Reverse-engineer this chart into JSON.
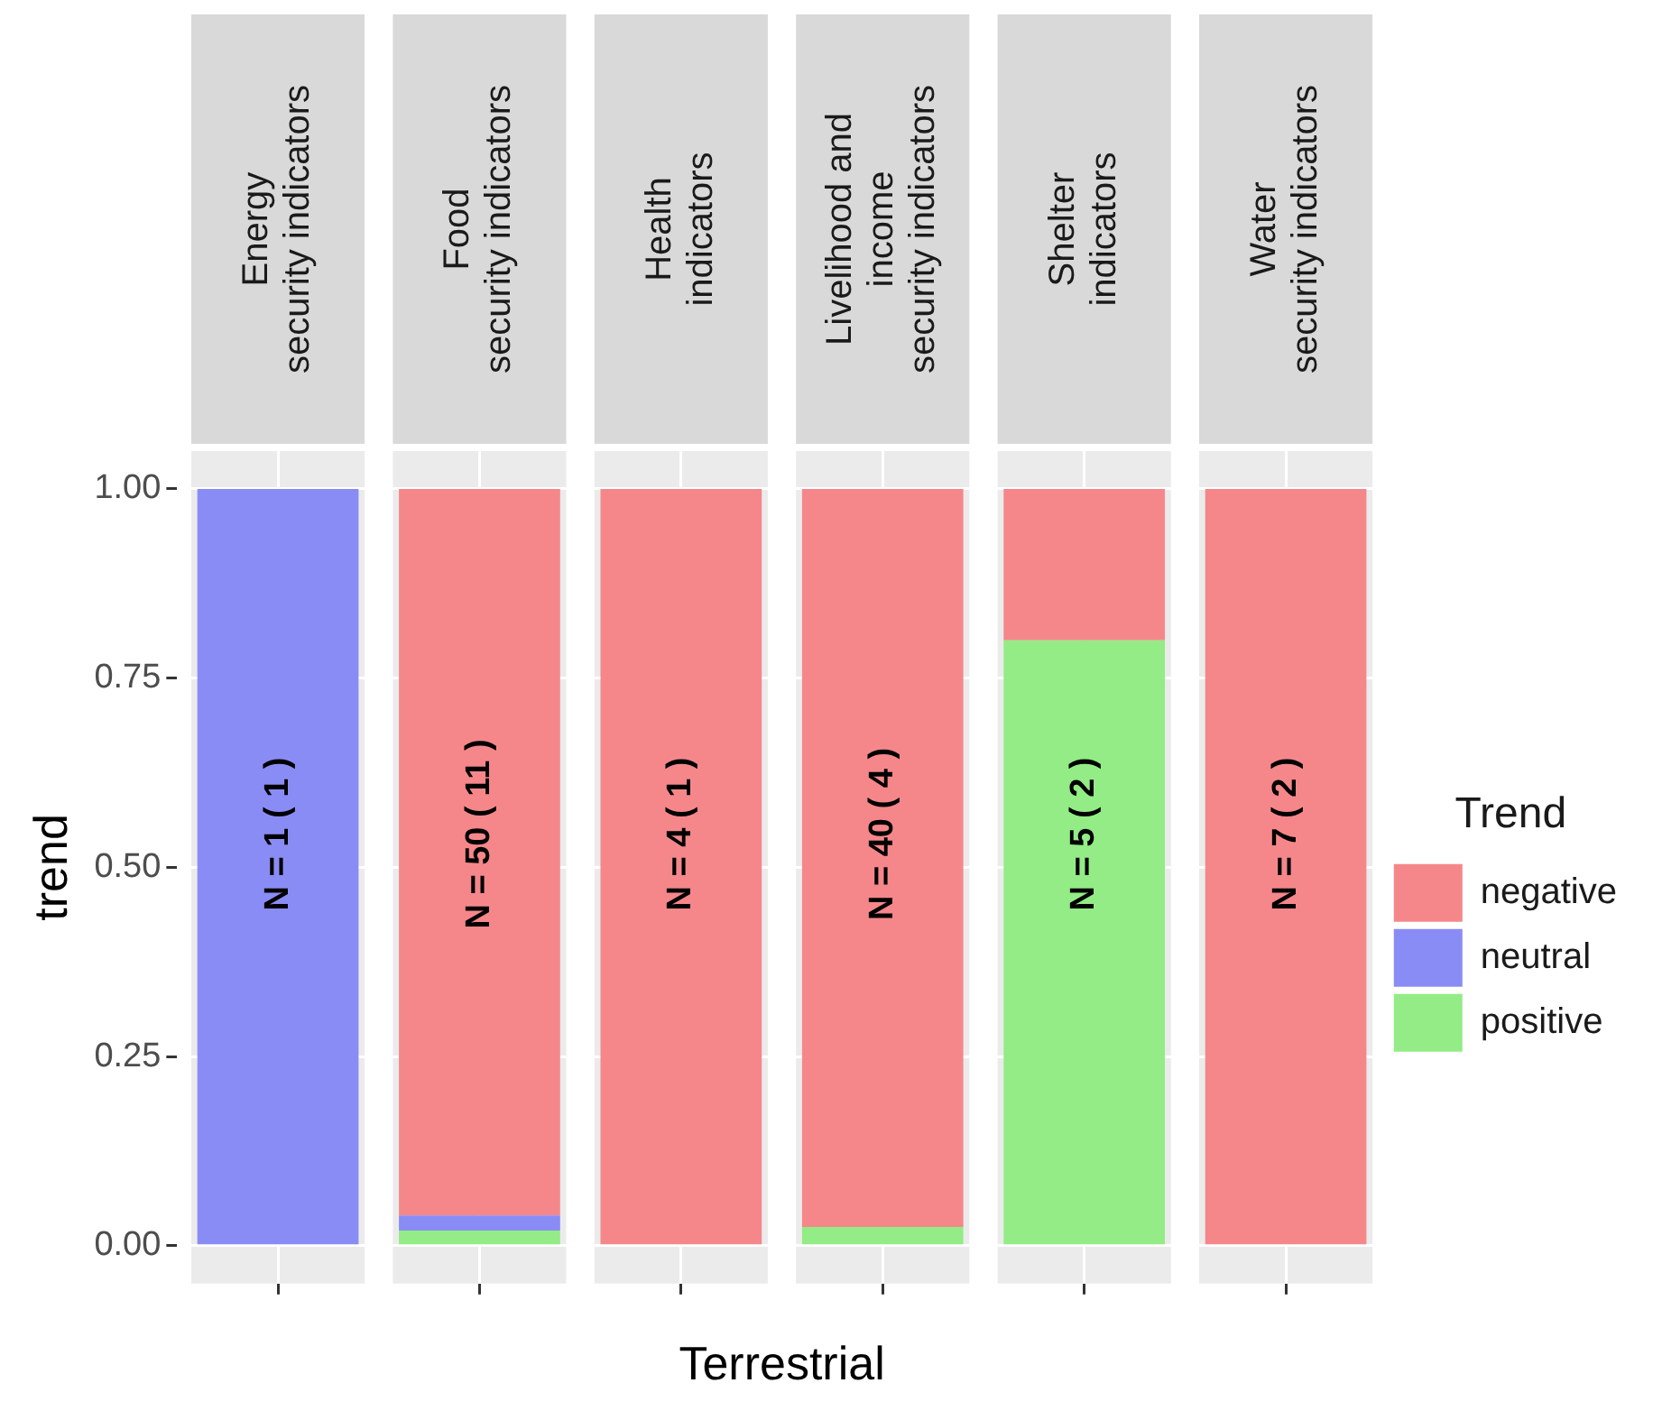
{
  "chart_data": {
    "type": "bar",
    "stacked": true,
    "xlabel": "Terrestrial",
    "ylabel": "trend",
    "legend_title": "Trend",
    "legend": "right",
    "grid": true,
    "categories": [
      "Energy\nsecurity indicators",
      "Food\nsecurity indicators",
      "Health\nindicators",
      "Livelihood and\nincome\nsecurity indicators",
      "Shelter\nindicators",
      "Water\nsecurity indicators"
    ],
    "series": [
      {
        "name": "positive",
        "color": "#93ec85",
        "values": [
          0,
          0.02,
          0,
          0.025,
          0.8,
          0
        ]
      },
      {
        "name": "neutral",
        "color": "#8a8cf5",
        "values": [
          1,
          0.02,
          0,
          0,
          0,
          0
        ]
      },
      {
        "name": "negative",
        "color": "#f5878a",
        "values": [
          0,
          0.96,
          1,
          0.975,
          0.2,
          1
        ]
      }
    ],
    "ylim": [
      -0.05,
      1.05
    ],
    "yticks": [
      {
        "value": 0,
        "label": "0.00"
      },
      {
        "value": 0.25,
        "label": "0.25"
      },
      {
        "value": 0.5,
        "label": "0.50"
      },
      {
        "value": 0.75,
        "label": "0.75"
      },
      {
        "value": 1,
        "label": "1.00"
      }
    ],
    "annotations": [
      "N = 1 ( 1 )",
      "N = 50 ( 11 )",
      "N = 4 ( 1 )",
      "N = 40 ( 4 )",
      "N = 5 ( 2 )",
      "N = 7 ( 2 )"
    ]
  }
}
